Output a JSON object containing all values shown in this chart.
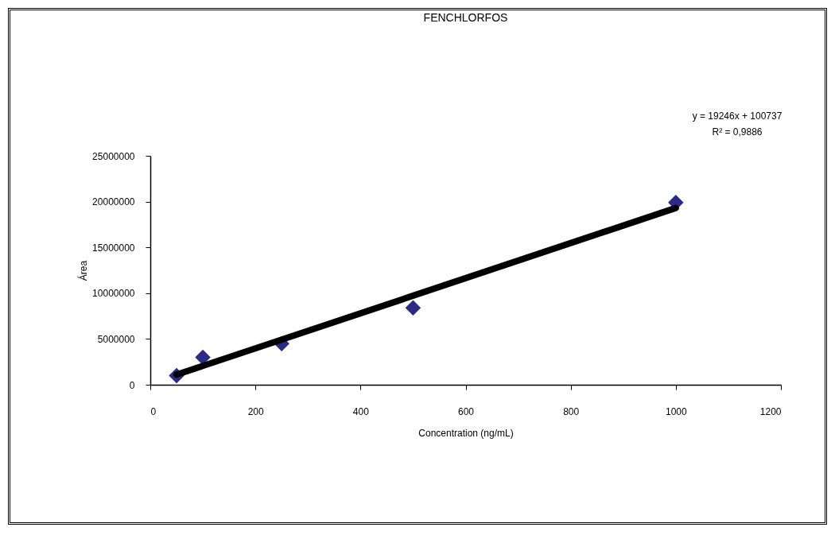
{
  "chart_data": {
    "type": "scatter",
    "title": "FENCHLORFOS",
    "xlabel": "Concentration (ng/mL)",
    "ylabel": "Área",
    "x": [
      50,
      100,
      250,
      500,
      1000
    ],
    "series": [
      {
        "color": "#2b2b85",
        "marker": "diamond",
        "values": [
          1000000,
          3000000,
          4500000,
          8400000,
          19900000
        ]
      },
      {
        "type": "line",
        "color": "#000000",
        "x": [
          50,
          1000
        ],
        "values": [
          1100000,
          19300000
        ]
      }
    ],
    "annotations": [
      "y = 19246x + 100737",
      "R² = 0,9886"
    ],
    "xlim": [
      0,
      1200
    ],
    "xticks": [
      0,
      200,
      400,
      600,
      800,
      1000,
      1200
    ],
    "ylim": [
      0,
      25000000
    ],
    "yticks": [
      0,
      5000000,
      10000000,
      15000000,
      20000000,
      25000000
    ],
    "grid": false,
    "line_style": "solid"
  }
}
